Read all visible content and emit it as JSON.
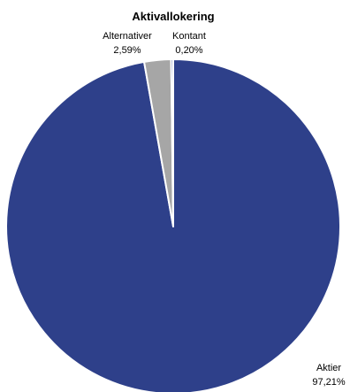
{
  "chart_data": {
    "type": "pie",
    "title": "Aktivallokering",
    "slices": [
      {
        "name": "Aktier",
        "value": 97.21,
        "value_label": "97,21%",
        "color": "#2e408a"
      },
      {
        "name": "Alternativer",
        "value": 2.59,
        "value_label": "2,59%",
        "color": "#a6a6a6"
      },
      {
        "name": "Kontant",
        "value": 0.2,
        "value_label": "0,20%",
        "color": "#2e408a"
      }
    ],
    "legend": "none",
    "data_labels": "outside"
  }
}
